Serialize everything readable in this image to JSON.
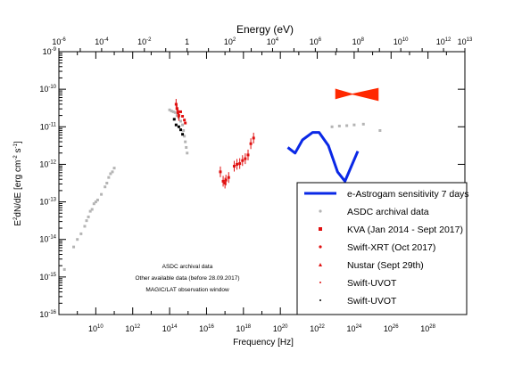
{
  "chart_data": {
    "type": "scatter",
    "top_axis": {
      "label": "Energy (eV)",
      "scale": "log",
      "range_exp": [
        -6,
        13
      ],
      "ticks": [
        {
          "base": "10",
          "exp": "-6",
          "v": -6
        },
        {
          "base": "10",
          "exp": "-4",
          "v": -4
        },
        {
          "base": "10",
          "exp": "-2",
          "v": -2
        },
        {
          "base": "1",
          "exp": "",
          "v": 0
        },
        {
          "base": "10",
          "exp": "2",
          "v": 2
        },
        {
          "base": "10",
          "exp": "4",
          "v": 4
        },
        {
          "base": "10",
          "exp": "6",
          "v": 6
        },
        {
          "base": "10",
          "exp": "8",
          "v": 8
        },
        {
          "base": "10",
          "exp": "10",
          "v": 10
        },
        {
          "base": "10",
          "exp": "12",
          "v": 12
        },
        {
          "base": "10",
          "exp": "13",
          "v": 13
        }
      ]
    },
    "xaxis": {
      "label": "Frequency [Hz]",
      "scale": "log",
      "range_exp": [
        8,
        30
      ],
      "ticks": [
        {
          "base": "10",
          "exp": "10",
          "v": 10
        },
        {
          "base": "10",
          "exp": "12",
          "v": 12
        },
        {
          "base": "10",
          "exp": "14",
          "v": 14
        },
        {
          "base": "10",
          "exp": "16",
          "v": 16
        },
        {
          "base": "10",
          "exp": "18",
          "v": 18
        },
        {
          "base": "10",
          "exp": "20",
          "v": 20
        },
        {
          "base": "10",
          "exp": "22",
          "v": 22
        },
        {
          "base": "10",
          "exp": "24",
          "v": 24
        },
        {
          "base": "10",
          "exp": "26",
          "v": 26
        },
        {
          "base": "10",
          "exp": "28",
          "v": 28
        }
      ]
    },
    "yaxis": {
      "label_main": "E",
      "label_sup1": "2",
      "label_rest": "dN/dE   [erg cm",
      "label_sup2": "-2",
      "label_mid": " s",
      "label_sup3": "-1",
      "label_end": "]",
      "scale": "log",
      "range_exp": [
        -16,
        -9
      ],
      "ticks": [
        {
          "base": "10",
          "exp": "-9",
          "v": -9
        },
        {
          "base": "10",
          "exp": "-10",
          "v": -10
        },
        {
          "base": "10",
          "exp": "-11",
          "v": -11
        },
        {
          "base": "10",
          "exp": "-12",
          "v": -12
        },
        {
          "base": "10",
          "exp": "-13",
          "v": -13
        },
        {
          "base": "10",
          "exp": "-14",
          "v": -14
        },
        {
          "base": "10",
          "exp": "-15",
          "v": -15
        },
        {
          "base": "10",
          "exp": "-16",
          "v": -16
        }
      ]
    },
    "annotations": [
      {
        "text": "ASDC archival data",
        "color": "#a8a8a8"
      },
      {
        "text": "Other available data (before 28.09.2017)",
        "color": "#000000"
      },
      {
        "text": "MAGIC/LAT observation window",
        "color": "#ff0000"
      }
    ],
    "legend": {
      "placement": "bottom-right",
      "entries": [
        {
          "label": "e-Astrogam sensitivity 7 days",
          "marker": "line",
          "color": "#0a28e6"
        },
        {
          "label": "ASDC archival data",
          "marker": "dot",
          "color": "#b4b4b4"
        },
        {
          "label": "KVA (Jan 2014 - Sept 2017)",
          "marker": "square",
          "color": "#e01010"
        },
        {
          "label": "Swift-XRT (Oct 2017)",
          "marker": "dot",
          "color": "#e01010"
        },
        {
          "label": "Nustar (Sept 29th)",
          "marker": "triangle",
          "color": "#e01010"
        },
        {
          "label": "Swift-UVOT",
          "marker": "small-dot",
          "color": "#e01010"
        },
        {
          "label": "Swift-UVOT",
          "marker": "small-dot",
          "color": "#000000"
        }
      ]
    },
    "series": [
      {
        "name": "e-Astrogam sensitivity 7 days",
        "type": "line",
        "color": "#0a28e6",
        "points": [
          [
            20.4,
            -11.55
          ],
          [
            20.8,
            -11.7
          ],
          [
            21.2,
            -11.35
          ],
          [
            21.75,
            -11.15
          ],
          [
            22.1,
            -11.15
          ],
          [
            22.6,
            -11.5
          ],
          [
            23.1,
            -12.2
          ],
          [
            23.5,
            -12.45
          ],
          [
            23.85,
            -12.05
          ],
          [
            24.2,
            -11.65
          ]
        ]
      },
      {
        "name": "ASDC archival data",
        "type": "scatter",
        "color": "#b4b4b4",
        "points": [
          [
            8.3,
            -14.8
          ],
          [
            8.8,
            -14.2
          ],
          [
            9.0,
            -14.0
          ],
          [
            9.2,
            -13.85
          ],
          [
            9.4,
            -13.65
          ],
          [
            9.5,
            -13.5
          ],
          [
            9.6,
            -13.4
          ],
          [
            9.7,
            -13.25
          ],
          [
            9.8,
            -13.2
          ],
          [
            9.9,
            -13.05
          ],
          [
            10.0,
            -13.0
          ],
          [
            10.1,
            -12.95
          ],
          [
            10.3,
            -12.8
          ],
          [
            10.5,
            -12.6
          ],
          [
            10.6,
            -12.5
          ],
          [
            10.7,
            -12.35
          ],
          [
            10.8,
            -12.25
          ],
          [
            10.9,
            -12.2
          ],
          [
            11.0,
            -12.1
          ],
          [
            14.0,
            -10.55
          ],
          [
            14.1,
            -10.58
          ],
          [
            14.2,
            -10.6
          ],
          [
            14.3,
            -10.62
          ],
          [
            14.4,
            -10.7
          ],
          [
            14.5,
            -10.75
          ],
          [
            14.6,
            -10.85
          ],
          [
            14.7,
            -10.95
          ],
          [
            14.75,
            -11.1
          ],
          [
            14.8,
            -11.25
          ],
          [
            14.85,
            -11.4
          ],
          [
            14.9,
            -11.55
          ],
          [
            14.95,
            -11.7
          ],
          [
            22.8,
            -11.0
          ],
          [
            23.2,
            -10.98
          ],
          [
            23.6,
            -10.97
          ],
          [
            24.0,
            -10.95
          ],
          [
            24.5,
            -10.93
          ],
          [
            25.4,
            -11.1
          ]
        ]
      },
      {
        "name": "KVA (Jan 2014 - Sept 2017)",
        "type": "scatter",
        "color": "#e01010",
        "points": [
          [
            14.35,
            -10.4
          ],
          [
            14.4,
            -10.52
          ],
          [
            14.45,
            -10.62
          ],
          [
            14.5,
            -10.7
          ]
        ]
      },
      {
        "name": "Swift-XRT (Oct 2017)",
        "type": "scatter",
        "color": "#e01010",
        "points": [
          [
            16.75,
            -12.2
          ],
          [
            16.9,
            -12.45
          ],
          [
            17.0,
            -12.5
          ],
          [
            17.05,
            -12.42
          ],
          [
            17.2,
            -12.35
          ],
          [
            17.5,
            -12.05
          ],
          [
            17.65,
            -12.0
          ],
          [
            17.8,
            -11.98
          ],
          [
            17.95,
            -11.9
          ],
          [
            18.1,
            -11.85
          ],
          [
            18.25,
            -11.75
          ]
        ]
      },
      {
        "name": "Nustar (Sept 29th)",
        "type": "scatter",
        "color": "#e01010",
        "points": [
          [
            18.4,
            -11.45
          ],
          [
            18.55,
            -11.3
          ]
        ]
      },
      {
        "name": "Swift-UVOT",
        "type": "scatter",
        "color": "#e01010",
        "points": [
          [
            14.6,
            -10.6
          ],
          [
            14.7,
            -10.72
          ],
          [
            14.8,
            -10.82
          ],
          [
            14.85,
            -10.9
          ]
        ]
      },
      {
        "name": "Swift-UVOT",
        "type": "scatter",
        "color": "#000000",
        "points": [
          [
            14.25,
            -10.8
          ],
          [
            14.35,
            -10.95
          ],
          [
            14.5,
            -11.0
          ],
          [
            14.6,
            -11.08
          ],
          [
            14.7,
            -11.2
          ]
        ]
      },
      {
        "name": "MAGIC/LAT",
        "type": "bowtie",
        "color": "#ff2800",
        "x_range": [
          23.0,
          25.3
        ],
        "pivot": [
          23.9,
          -10.13
        ],
        "y_left": [
          -10.0,
          -10.25
        ],
        "y_right": [
          -9.98,
          -10.3
        ]
      }
    ]
  }
}
